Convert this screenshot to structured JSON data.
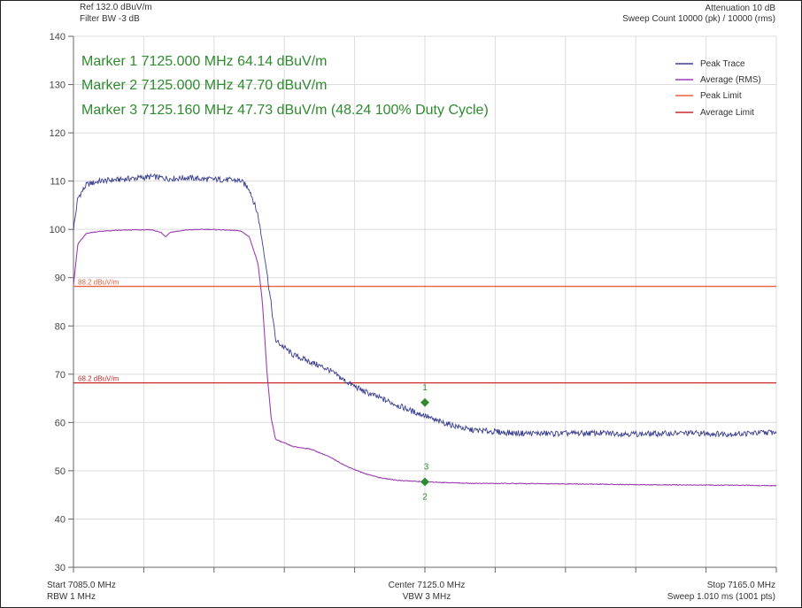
{
  "header": {
    "ref": "Ref 132.0 dBuV/m",
    "filter": "Filter BW -3 dB",
    "attenuation": "Attenuation 10 dB",
    "sweep_count": "Sweep Count 10000 (pk) / 10000 (rms)"
  },
  "markers_text": [
    "Marker 1 7125.000 MHz 64.14 dBuV/m",
    "Marker 2 7125.000 MHz 47.70 dBuV/m",
    "Marker 3 7125.160 MHz 47.73 dBuV/m (48.24 100% Duty Cycle)"
  ],
  "footer": {
    "start": "Start 7085.0 MHz",
    "rbw": "RBW 1 MHz",
    "center": "Center 7125.0 MHz",
    "vbw": "VBW 3 MHz",
    "stop": "Stop 7165.0 MHz",
    "sweep": "Sweep 1.010 ms (1001 pts)"
  },
  "colors": {
    "peak_trace": "#3a3f8f",
    "average_trace": "#9b3fb0",
    "peak_limit": "#e8603c",
    "average_limit": "#cc2a2a",
    "marker": "#2e8b2e",
    "grid": "#dcdcdc"
  },
  "chart_data": {
    "type": "line",
    "xlim": [
      7085.0,
      7165.0
    ],
    "ylim": [
      30,
      140
    ],
    "yticks": [
      30,
      40,
      50,
      60,
      70,
      80,
      90,
      100,
      110,
      120,
      130,
      140
    ],
    "grid": true,
    "legend_position": "top-right",
    "series": [
      {
        "name": "Peak Trace",
        "x": [
          7085.0,
          7085.5,
          7086.5,
          7088.0,
          7090.0,
          7092.0,
          7094.0,
          7096.0,
          7098.0,
          7100.0,
          7102.0,
          7104.0,
          7105.0,
          7106.0,
          7106.8,
          7107.5,
          7108.0,
          7109.0,
          7110.0,
          7112.0,
          7114.0,
          7116.0,
          7118.0,
          7120.0,
          7122.0,
          7124.0,
          7125.0,
          7126.0,
          7128.0,
          7130.0,
          7135.0,
          7140.0,
          7145.0,
          7150.0,
          7155.0,
          7160.0,
          7165.0
        ],
        "y": [
          100.0,
          106.5,
          109.3,
          110.0,
          110.3,
          110.6,
          110.9,
          110.5,
          110.7,
          110.4,
          110.3,
          110.1,
          108.5,
          103.0,
          94.0,
          84.5,
          77.0,
          75.5,
          74.0,
          72.5,
          71.0,
          68.5,
          66.5,
          65.0,
          63.5,
          62.0,
          61.5,
          60.5,
          59.5,
          58.5,
          57.8,
          57.7,
          57.8,
          57.6,
          57.8,
          57.6,
          58.0
        ]
      },
      {
        "name": "Average (RMS)",
        "x": [
          7085.0,
          7085.5,
          7086.5,
          7088.0,
          7090.0,
          7092.0,
          7094.0,
          7095.0,
          7095.5,
          7096.0,
          7098.0,
          7100.0,
          7102.0,
          7104.0,
          7105.0,
          7106.0,
          7106.5,
          7107.0,
          7107.5,
          7108.0,
          7110.0,
          7112.0,
          7114.0,
          7116.0,
          7118.0,
          7120.0,
          7122.0,
          7125.0,
          7130.0,
          7140.0,
          7150.0,
          7160.0,
          7165.0
        ],
        "y": [
          88.5,
          97.0,
          99.2,
          99.6,
          99.8,
          99.9,
          99.9,
          99.3,
          98.5,
          99.4,
          99.9,
          100.0,
          99.9,
          99.7,
          98.5,
          93.0,
          85.0,
          71.0,
          61.0,
          56.5,
          55.0,
          54.5,
          53.0,
          51.0,
          49.5,
          48.5,
          48.0,
          47.7,
          47.4,
          47.3,
          47.1,
          47.0,
          46.9
        ]
      },
      {
        "name": "Peak Limit",
        "label": "88.2 dBuV/m",
        "x": [
          7085.0,
          7165.0
        ],
        "y": [
          88.2,
          88.2
        ]
      },
      {
        "name": "Average Limit",
        "label": "68.2 dBuV/m",
        "x": [
          7085.0,
          7165.0
        ],
        "y": [
          68.2,
          68.2
        ]
      }
    ],
    "markers": [
      {
        "label": "1",
        "x": 7125.0,
        "y": 64.14
      },
      {
        "label": "2",
        "x": 7125.0,
        "y": 47.7
      },
      {
        "label": "3",
        "x": 7125.16,
        "y": 47.73
      }
    ]
  }
}
